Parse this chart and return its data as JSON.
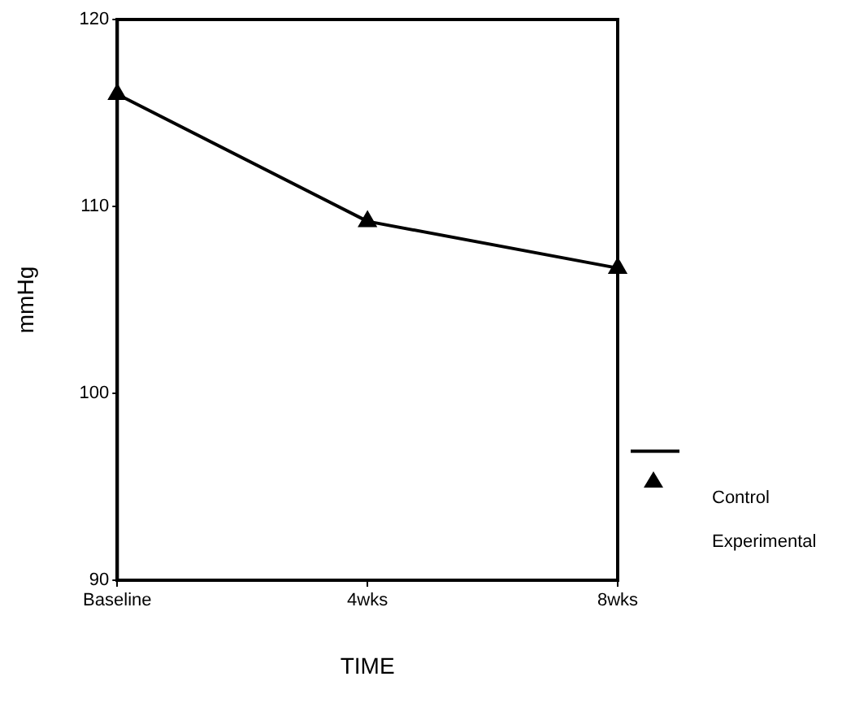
{
  "chart_data": {
    "type": "line",
    "xlabel": "TIME",
    "ylabel": "mmHg",
    "categories": [
      "Baseline",
      "4wks",
      "8wks"
    ],
    "series": [
      {
        "name": "Control",
        "color": "#000000",
        "values": [
          116,
          109.2,
          106.7
        ]
      }
    ],
    "ylim": [
      90,
      120
    ],
    "yticks": [
      90,
      100,
      110,
      120
    ],
    "grid": false,
    "legend": "right",
    "marker": "triangle",
    "line_style": "solid",
    "annotations": [
      "Experimental"
    ]
  }
}
